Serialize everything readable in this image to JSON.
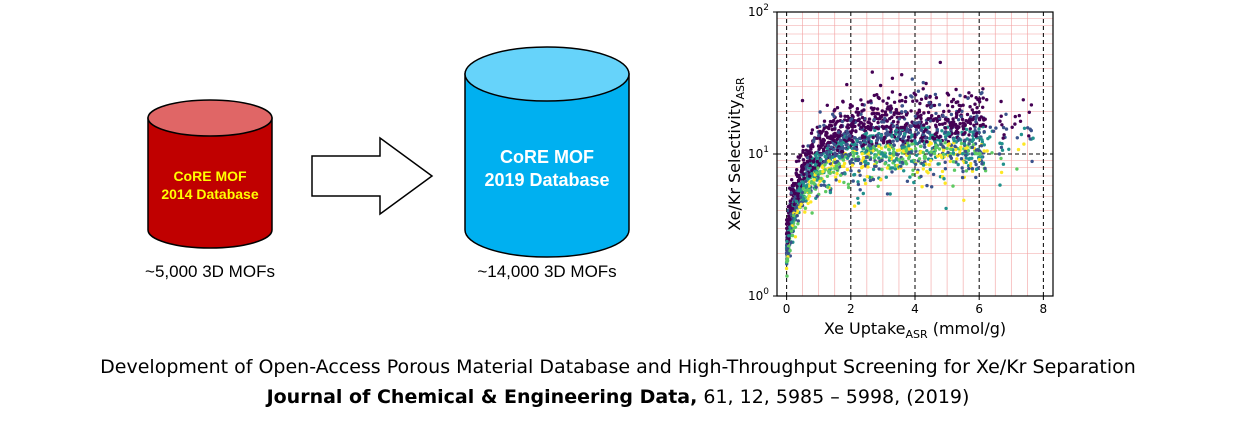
{
  "left_db": {
    "line1": "CoRE MOF",
    "line2": "2014 Database",
    "count": "~5,000 3D MOFs",
    "body_color": "#c00000",
    "top_color": "#e06666",
    "text_color": "#ffff00"
  },
  "right_db": {
    "line1": "CoRE MOF",
    "line2": "2019 Database",
    "count": "~14,000 3D MOFs",
    "body_color": "#00b0f0",
    "top_color": "#66d3fa",
    "text_color": "#ffffff"
  },
  "citation": {
    "title": "Development of Open-Access Porous Material Database and High-Throughput Screening for Xe/Kr Separation",
    "journal": "Journal of Chemical & Engineering Data,",
    "details": " 61, 12, 5985 – 5998, (2019)"
  },
  "chart_data": {
    "type": "scatter",
    "xlabel_main": "Xe Uptake",
    "xlabel_sub": "ASR",
    "xlabel_unit": " (mmol/g)",
    "ylabel_main": "Xe/Kr Selectivity",
    "ylabel_sub": "ASR",
    "xlim": [
      -0.3,
      8.3
    ],
    "ylim": [
      1,
      100
    ],
    "yscale": "log",
    "x_ticks": [
      "0",
      "2",
      "4",
      "6",
      "8"
    ],
    "y_ticks": [
      {
        "base": "10",
        "exp": "0"
      },
      {
        "base": "10",
        "exp": "1"
      },
      {
        "base": "10",
        "exp": "2"
      }
    ],
    "grid": "major dashed black, minor solid pink",
    "thresholds": {
      "x": 6,
      "y": 10
    },
    "colormap": [
      "#440154",
      "#3b528b",
      "#21918c",
      "#5ec962",
      "#fde725"
    ],
    "approx_point_count": 2000
  }
}
